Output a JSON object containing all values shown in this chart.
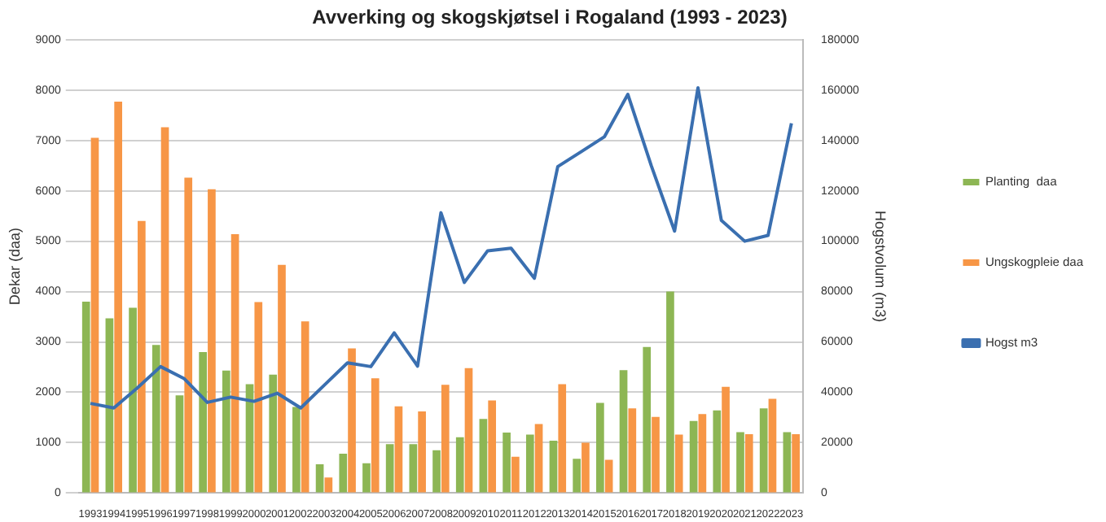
{
  "chart_data": {
    "type": "bar",
    "title": "Avverking og skogskjøtsel i Rogaland (1993 - 2023)",
    "ylabel": "Dekar (daa)",
    "y2label": "Hogstvolum (m3)",
    "categories": [
      "1993",
      "1994",
      "1995",
      "1996",
      "1997",
      "1998",
      "1999",
      "2000",
      "2001",
      "2002",
      "2003",
      "2004",
      "2005",
      "2006",
      "2007",
      "2008",
      "2009",
      "2010",
      "2011",
      "2012",
      "2013",
      "2014",
      "2015",
      "2016",
      "2017",
      "2018",
      "2019",
      "2020",
      "2021",
      "2022",
      "2023"
    ],
    "series": [
      {
        "name": "Planting  daa",
        "type": "bar",
        "color": "#8db654",
        "values": [
          3800,
          3470,
          3680,
          2940,
          1940,
          2800,
          2430,
          2160,
          2350,
          1710,
          570,
          780,
          590,
          970,
          970,
          850,
          1110,
          1470,
          1200,
          1160,
          1040,
          680,
          1790,
          2440,
          2900,
          4000,
          1430,
          1640,
          1210,
          1680,
          1210
        ]
      },
      {
        "name": "Ungskogpleie daa",
        "type": "bar",
        "color": "#f79646",
        "values": [
          7050,
          7770,
          5400,
          7260,
          6260,
          6030,
          5140,
          3790,
          4530,
          3410,
          310,
          2870,
          2280,
          1720,
          1620,
          2150,
          2480,
          1840,
          720,
          1370,
          2160,
          1000,
          660,
          1680,
          1510,
          1160,
          1570,
          2110,
          1170,
          1870,
          1170
        ]
      },
      {
        "name": "Hogst m3",
        "type": "line",
        "axis": "y2",
        "color": "#3a6fb0",
        "values": [
          35600,
          33800,
          41700,
          50200,
          45500,
          36000,
          38100,
          36400,
          39600,
          33800,
          42800,
          51700,
          50200,
          63600,
          50400,
          111300,
          83600,
          96200,
          97200,
          85300,
          129600,
          135500,
          141500,
          158300,
          130000,
          104000,
          160900,
          108300,
          100000,
          102300,
          146800
        ]
      }
    ],
    "ylim": [
      0,
      9000
    ],
    "yticks": [
      0,
      1000,
      2000,
      3000,
      4000,
      5000,
      6000,
      7000,
      8000,
      9000
    ],
    "y2lim": [
      0,
      180000
    ],
    "y2ticks": [
      0,
      20000,
      40000,
      60000,
      80000,
      100000,
      120000,
      140000,
      160000,
      180000
    ],
    "grid": "y",
    "legend": "right",
    "marker": "none",
    "line_style": "solid"
  }
}
